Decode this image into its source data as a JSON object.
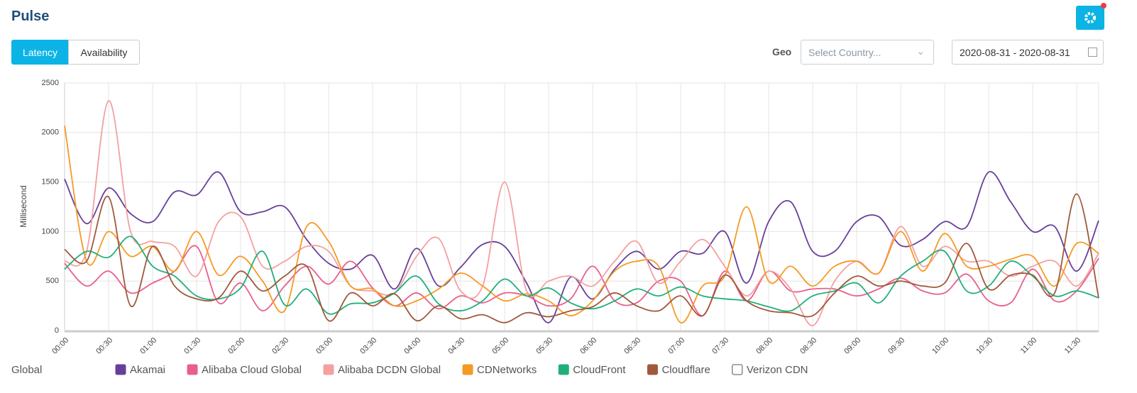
{
  "header": {
    "title": "Pulse"
  },
  "tabs": [
    "Latency",
    "Availability"
  ],
  "geo": {
    "label": "Geo",
    "placeholder": "Select Country..."
  },
  "date_range": "2020-08-31 - 2020-08-31",
  "legend_title": "Global",
  "chart_data": {
    "type": "line",
    "y_label": "Millisecond",
    "categories": [
      "00:00",
      null,
      "00:30",
      null,
      "01:00",
      null,
      "01:30",
      null,
      "02:00",
      null,
      "02:30",
      null,
      "03:00",
      null,
      "03:30",
      null,
      "04:00",
      null,
      "04:30",
      null,
      "05:00",
      null,
      "05:30",
      null,
      "06:00",
      null,
      "06:30",
      null,
      "07:00",
      null,
      "07:30",
      null,
      "08:00",
      null,
      "08:30",
      null,
      "09:00",
      null,
      "09:30",
      null,
      "10:00",
      null,
      "10:30",
      null,
      "11:00",
      null,
      "11:30",
      null
    ],
    "ylim": [
      0,
      2500
    ],
    "yticks": [
      0,
      500,
      1000,
      1500,
      2000,
      2500
    ],
    "grid": true,
    "series": [
      {
        "name": "Akamai",
        "color": "#673f9a",
        "values": [
          1530,
          1080,
          1440,
          1180,
          1100,
          1400,
          1370,
          1600,
          1200,
          1200,
          1250,
          920,
          680,
          620,
          760,
          420,
          830,
          450,
          640,
          870,
          850,
          480,
          80,
          540,
          320,
          620,
          800,
          620,
          800,
          780,
          1000,
          480,
          1100,
          1300,
          800,
          800,
          1100,
          1150,
          860,
          920,
          1100,
          1050,
          1600,
          1300,
          1000,
          1050,
          600,
          1110
        ]
      },
      {
        "name": "Alibaba Cloud Global",
        "color": "#e8608a",
        "values": [
          680,
          450,
          600,
          380,
          480,
          600,
          850,
          280,
          480,
          200,
          450,
          650,
          470,
          700,
          430,
          250,
          380,
          220,
          350,
          280,
          380,
          350,
          250,
          320,
          650,
          300,
          280,
          500,
          500,
          150,
          600,
          300,
          600,
          400,
          420,
          420,
          350,
          420,
          530,
          400,
          380,
          570,
          300,
          280,
          620,
          300,
          400,
          730
        ]
      },
      {
        "name": "Alibaba DCDN Global",
        "color": "#f4a0a0",
        "values": [
          700,
          800,
          2320,
          1000,
          900,
          850,
          550,
          1100,
          1150,
          650,
          700,
          850,
          800,
          450,
          400,
          380,
          750,
          930,
          400,
          450,
          1500,
          400,
          500,
          550,
          450,
          700,
          900,
          480,
          700,
          920,
          650,
          350,
          600,
          420,
          50,
          500,
          700,
          580,
          1050,
          650,
          850,
          700,
          700,
          550,
          650,
          700,
          450,
          780
        ]
      },
      {
        "name": "CDNetworks",
        "color": "#f59a23",
        "values": [
          2070,
          700,
          1000,
          750,
          850,
          600,
          1000,
          560,
          750,
          500,
          200,
          1050,
          900,
          450,
          420,
          250,
          300,
          420,
          580,
          450,
          300,
          370,
          300,
          150,
          300,
          600,
          700,
          650,
          80,
          450,
          550,
          1250,
          500,
          650,
          450,
          650,
          700,
          580,
          1000,
          600,
          980,
          650,
          650,
          720,
          750,
          450,
          880,
          780
        ]
      },
      {
        "name": "CloudFront",
        "color": "#1fb07a",
        "values": [
          620,
          800,
          740,
          950,
          650,
          550,
          350,
          320,
          430,
          800,
          260,
          420,
          170,
          270,
          280,
          380,
          550,
          270,
          200,
          300,
          520,
          350,
          430,
          280,
          220,
          300,
          420,
          350,
          440,
          350,
          320,
          300,
          240,
          200,
          350,
          400,
          480,
          280,
          550,
          700,
          800,
          400,
          450,
          700,
          550,
          350,
          400,
          330
        ]
      },
      {
        "name": "Cloudflare",
        "color": "#a0583c",
        "values": [
          820,
          700,
          1350,
          250,
          850,
          450,
          320,
          330,
          600,
          400,
          550,
          650,
          100,
          380,
          250,
          370,
          100,
          250,
          120,
          160,
          80,
          180,
          140,
          200,
          240,
          380,
          250,
          200,
          350,
          150,
          560,
          300,
          200,
          180,
          150,
          380,
          550,
          450,
          500,
          450,
          480,
          880,
          420,
          560,
          560,
          380,
          1380,
          330
        ]
      },
      {
        "name": "Verizon CDN",
        "color": "#ffffff",
        "values": [
          null,
          null,
          null,
          null,
          null,
          null,
          null,
          null,
          null,
          null,
          null,
          null,
          null,
          null,
          null,
          null,
          null,
          null,
          null,
          null,
          null,
          null,
          null,
          null,
          null,
          null,
          null,
          null,
          null,
          null,
          null,
          null,
          null,
          null,
          null,
          null,
          null,
          null,
          null,
          null,
          null,
          null,
          null,
          null,
          null,
          null,
          null,
          null
        ]
      }
    ]
  }
}
